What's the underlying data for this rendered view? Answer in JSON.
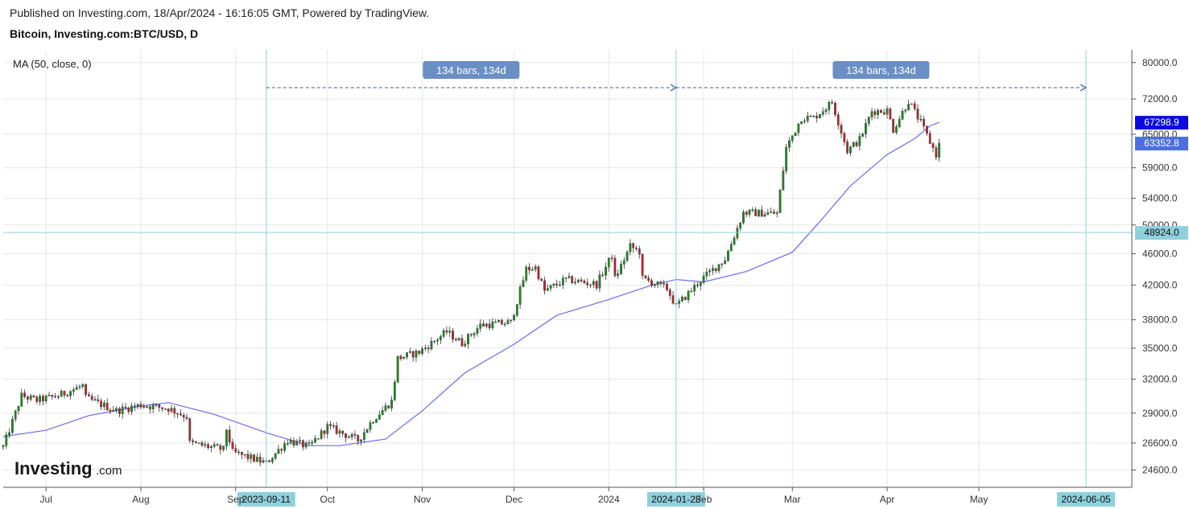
{
  "header": {
    "published": "Published on Investing.com, 18/Apr/2024 - 16:16:05 GMT, Powered by TradingView.",
    "symbol": "Bitcoin, Investing.com:BTC/USD, D"
  },
  "indicator": {
    "label": "MA (50, close, 0)"
  },
  "logo": {
    "main": "Investing",
    "suffix": ".com"
  },
  "chart_data": {
    "type": "candlestick",
    "instrument": "BTC/USD",
    "interval": "D",
    "y_axis": {
      "ticks": [
        24600,
        26600,
        29000,
        32000,
        35000,
        38000,
        42000,
        46000,
        50000,
        54000,
        59000,
        65000,
        72000,
        80000
      ],
      "tick_labels": [
        "24600.0",
        "26600.0",
        "29000.0",
        "32000.0",
        "35000.0",
        "38000.0",
        "42000.0",
        "46000.0",
        "50000.0",
        "54000.0",
        "59000.0",
        "65000.0",
        "72000.0",
        "80000.0"
      ],
      "range": [
        23400,
        83000
      ],
      "scale": "log"
    },
    "x_axis": {
      "range": [
        "2023-06-17",
        "2024-06-20"
      ],
      "ticks": [
        {
          "date": "2023-07-01",
          "label": "Jul"
        },
        {
          "date": "2023-08-01",
          "label": "Aug"
        },
        {
          "date": "2023-09-01",
          "label": "Sep"
        },
        {
          "date": "2023-10-01",
          "label": "Oct"
        },
        {
          "date": "2023-11-01",
          "label": "Nov"
        },
        {
          "date": "2023-12-01",
          "label": "Dec"
        },
        {
          "date": "2024-01-01",
          "label": "2024"
        },
        {
          "date": "2024-02-01",
          "label": "Feb"
        },
        {
          "date": "2024-03-01",
          "label": "Mar"
        },
        {
          "date": "2024-04-01",
          "label": "Apr"
        },
        {
          "date": "2024-05-01",
          "label": "May"
        }
      ],
      "date_markers": [
        {
          "date": "2023-09-11",
          "label": "2023-09-11"
        },
        {
          "date": "2024-01-23",
          "label": "2024-01-23"
        },
        {
          "date": "2024-06-05",
          "label": "2024-06-05"
        }
      ]
    },
    "series": [
      {
        "name": "BTC/USD",
        "kind": "candles",
        "price_label": "63352.8",
        "up_color": "#1e8a24",
        "down_color": "#b3282d",
        "close_anchors": [
          [
            "2023-06-17",
            26300
          ],
          [
            "2023-06-20",
            28300
          ],
          [
            "2023-06-23",
            30500
          ],
          [
            "2023-06-28",
            30100
          ],
          [
            "2023-07-05",
            30500
          ],
          [
            "2023-07-13",
            31400
          ],
          [
            "2023-07-14",
            30300
          ],
          [
            "2023-07-24",
            29200
          ],
          [
            "2023-08-01",
            29700
          ],
          [
            "2023-08-10",
            29400
          ],
          [
            "2023-08-16",
            28700
          ],
          [
            "2023-08-17",
            26600
          ],
          [
            "2023-08-28",
            26100
          ],
          [
            "2023-08-29",
            27700
          ],
          [
            "2023-08-31",
            25900
          ],
          [
            "2023-09-11",
            25100
          ],
          [
            "2023-09-18",
            26800
          ],
          [
            "2023-09-25",
            26300
          ],
          [
            "2023-10-01",
            27900
          ],
          [
            "2023-10-11",
            26800
          ],
          [
            "2023-10-16",
            28500
          ],
          [
            "2023-10-22",
            30000
          ],
          [
            "2023-10-24",
            34000
          ],
          [
            "2023-10-31",
            34600
          ],
          [
            "2023-11-09",
            36700
          ],
          [
            "2023-11-14",
            35500
          ],
          [
            "2023-11-20",
            37400
          ],
          [
            "2023-11-30",
            37700
          ],
          [
            "2023-12-05",
            44000
          ],
          [
            "2023-12-08",
            44200
          ],
          [
            "2023-12-11",
            41300
          ],
          [
            "2023-12-18",
            42700
          ],
          [
            "2023-12-28",
            42100
          ],
          [
            "2024-01-02",
            45800
          ],
          [
            "2024-01-03",
            42800
          ],
          [
            "2024-01-08",
            47000
          ],
          [
            "2024-01-11",
            46300
          ],
          [
            "2024-01-12",
            42800
          ],
          [
            "2024-01-20",
            41600
          ],
          [
            "2024-01-23",
            39500
          ],
          [
            "2024-01-31",
            42600
          ],
          [
            "2024-02-08",
            45300
          ],
          [
            "2024-02-14",
            51800
          ],
          [
            "2024-02-25",
            51700
          ],
          [
            "2024-02-28",
            62500
          ],
          [
            "2024-03-04",
            68200
          ],
          [
            "2024-03-08",
            68200
          ],
          [
            "2024-03-14",
            71300
          ],
          [
            "2024-03-19",
            62000
          ],
          [
            "2024-03-23",
            64000
          ],
          [
            "2024-03-27",
            69500
          ],
          [
            "2024-04-01",
            69600
          ],
          [
            "2024-04-03",
            65900
          ],
          [
            "2024-04-08",
            71600
          ],
          [
            "2024-04-12",
            67200
          ],
          [
            "2024-04-17",
            61300
          ],
          [
            "2024-04-18",
            63352.8
          ]
        ]
      },
      {
        "name": "MA (50, close, 0)",
        "kind": "line",
        "color": "#6b6bf2",
        "price_label": "67298.9",
        "points": [
          [
            "2023-06-17",
            27100
          ],
          [
            "2023-07-01",
            27600
          ],
          [
            "2023-07-15",
            28800
          ],
          [
            "2023-08-01",
            29600
          ],
          [
            "2023-08-10",
            29900
          ],
          [
            "2023-08-25",
            28900
          ],
          [
            "2023-09-11",
            27400
          ],
          [
            "2023-09-25",
            26400
          ],
          [
            "2023-10-05",
            26400
          ],
          [
            "2023-10-20",
            26900
          ],
          [
            "2023-11-01",
            29200
          ],
          [
            "2023-11-15",
            32600
          ],
          [
            "2023-12-01",
            35400
          ],
          [
            "2023-12-15",
            38500
          ],
          [
            "2024-01-01",
            40300
          ],
          [
            "2024-01-15",
            42000
          ],
          [
            "2024-01-23",
            42700
          ],
          [
            "2024-02-01",
            42400
          ],
          [
            "2024-02-15",
            43700
          ],
          [
            "2024-03-01",
            46200
          ],
          [
            "2024-03-10",
            50500
          ],
          [
            "2024-03-20",
            56000
          ],
          [
            "2024-04-01",
            61300
          ],
          [
            "2024-04-10",
            64200
          ],
          [
            "2024-04-15",
            66600
          ],
          [
            "2024-04-18",
            67298.9
          ]
        ]
      }
    ],
    "annotations": {
      "date_range_measurements": [
        {
          "from": "2023-09-11",
          "to": "2024-01-23",
          "label": "134 bars, 134d"
        },
        {
          "from": "2024-01-23",
          "to": "2024-06-05",
          "label": "134 bars, 134d"
        }
      ],
      "horizontal_line": {
        "value": 48924,
        "label": "48924.0"
      }
    },
    "colors": {
      "grid": "#e6e6e6",
      "crosshair": "#8fd0dc",
      "marker_bg": "#8fd0dc",
      "measure_label_bg": "#6a8fc4",
      "ma_label_bg": "#0a0ae0",
      "price_label_bg": "#4e6fe0",
      "hline_label_bg": "#8fd0dc"
    }
  }
}
